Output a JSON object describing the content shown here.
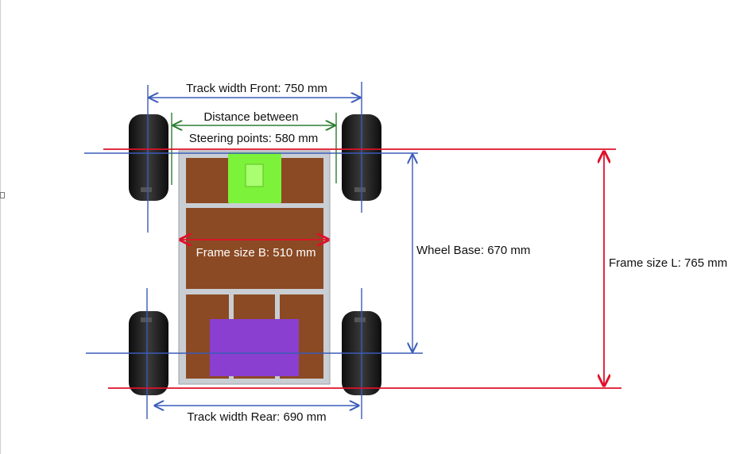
{
  "labels": {
    "track_front": "Track width Front: 750 mm",
    "steering_line1": "Distance between",
    "steering_line2": "Steering points: 580 mm",
    "frame_b": "Frame size B: 510 mm",
    "wheel_base": "Wheel Base: 670 mm",
    "frame_l": "Frame size L: 765 mm",
    "track_rear": "Track width Rear: 690 mm"
  },
  "colors": {
    "dimension_blue": "#3a5bb8",
    "dimension_green": "#2e7d32",
    "dimension_red": "#e0102a",
    "wood": "#8b4a24",
    "frame_rail": "#c9ced3",
    "tire": "#1b1b1b",
    "controller_green": "#7cf23a",
    "battery_purple": "#8a3fd1"
  }
}
